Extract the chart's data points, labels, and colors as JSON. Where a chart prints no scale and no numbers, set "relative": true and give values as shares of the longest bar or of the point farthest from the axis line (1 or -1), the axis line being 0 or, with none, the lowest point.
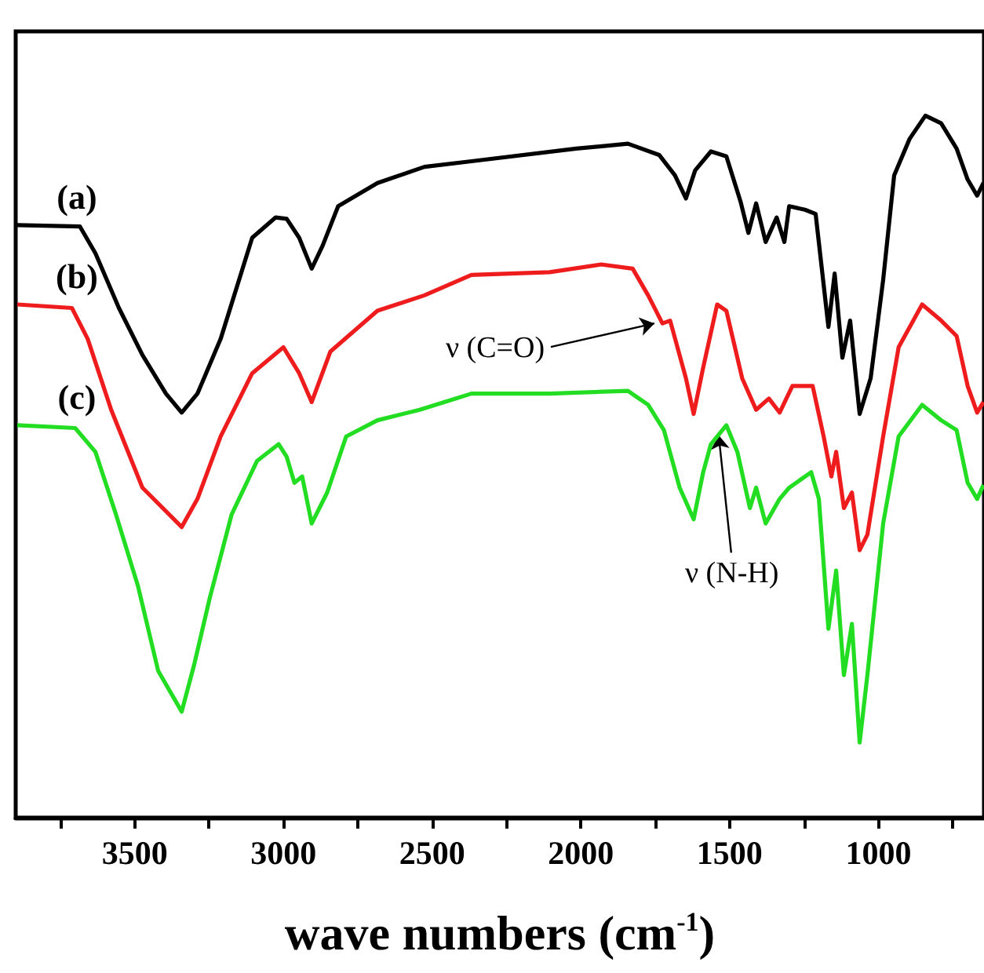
{
  "chart_data": {
    "type": "line",
    "relative": true,
    "xlabel": "wave numbers (cm$^{-1}$)",
    "xlim": [
      3900,
      645
    ],
    "xticks": [
      {
        "value": 3750,
        "label": null
      },
      3500,
      {
        "value": 3250,
        "label": null
      },
      3000,
      {
        "value": 2750,
        "label": null
      },
      2500,
      {
        "value": 2250,
        "label": null
      },
      2000,
      {
        "value": 1750,
        "label": null
      },
      1500,
      {
        "value": 1250,
        "label": null
      },
      1000,
      {
        "value": 750,
        "label": null
      }
    ],
    "tick_labels": "x",
    "legend": false,
    "grid": false,
    "marker": "none",
    "annotations": [
      {
        "text": "ν (C=O)",
        "x": 1753,
        "y": 0.704
      },
      {
        "text": "ν (N-H)",
        "x": 1537,
        "y": 0.545
      }
    ],
    "series": [
      {
        "name": "(a)",
        "color": "#000000",
        "x": [
          3895,
          3684,
          3632,
          3553,
          3474,
          3395,
          3342,
          3289,
          3211,
          3105,
          3026,
          2989,
          2947,
          2905,
          2868,
          2816,
          2684,
          2526,
          2368,
          2016,
          1842,
          1737,
          1684,
          1647,
          1616,
          1563,
          1511,
          1463,
          1437,
          1411,
          1379,
          1342,
          1316,
          1300,
          1247,
          1211,
          1168,
          1147,
          1121,
          1095,
          1063,
          1026,
          984,
          947,
          895,
          842,
          789,
          737,
          700,
          668,
          647
        ],
        "values": [
          0.844,
          0.842,
          0.804,
          0.726,
          0.659,
          0.604,
          0.577,
          0.604,
          0.682,
          0.826,
          0.855,
          0.853,
          0.826,
          0.782,
          0.815,
          0.871,
          0.904,
          0.927,
          0.935,
          0.953,
          0.96,
          0.944,
          0.915,
          0.882,
          0.922,
          0.949,
          0.942,
          0.877,
          0.833,
          0.875,
          0.82,
          0.855,
          0.82,
          0.871,
          0.866,
          0.86,
          0.699,
          0.775,
          0.655,
          0.708,
          0.575,
          0.626,
          0.766,
          0.915,
          0.967,
          1.0,
          0.989,
          0.953,
          0.909,
          0.886,
          0.904
        ]
      },
      {
        "name": "(b)",
        "color": "#ee1c1c",
        "x": [
          3895,
          3711,
          3658,
          3579,
          3474,
          3342,
          3289,
          3211,
          3105,
          3000,
          2947,
          2905,
          2842,
          2684,
          2526,
          2368,
          2105,
          1932,
          1826,
          1774,
          1726,
          1700,
          1647,
          1621,
          1589,
          1542,
          1511,
          1458,
          1411,
          1368,
          1332,
          1289,
          1221,
          1184,
          1158,
          1142,
          1116,
          1089,
          1063,
          1037,
          984,
          932,
          853,
          789,
          737,
          700,
          668,
          647
        ],
        "values": [
          0.731,
          0.726,
          0.682,
          0.581,
          0.47,
          0.414,
          0.454,
          0.543,
          0.633,
          0.67,
          0.633,
          0.592,
          0.664,
          0.722,
          0.744,
          0.773,
          0.777,
          0.788,
          0.782,
          0.744,
          0.704,
          0.708,
          0.626,
          0.575,
          0.641,
          0.731,
          0.722,
          0.626,
          0.581,
          0.597,
          0.577,
          0.615,
          0.615,
          0.543,
          0.486,
          0.521,
          0.441,
          0.463,
          0.381,
          0.403,
          0.543,
          0.67,
          0.731,
          0.708,
          0.686,
          0.615,
          0.577,
          0.592
        ]
      },
      {
        "name": "(c)",
        "color": "#22dd22",
        "x": [
          3895,
          3700,
          3632,
          3563,
          3489,
          3421,
          3342,
          3300,
          3247,
          3174,
          3089,
          3016,
          2989,
          2963,
          2937,
          2905,
          2853,
          2789,
          2684,
          2542,
          2368,
          2105,
          1842,
          1774,
          1721,
          1668,
          1621,
          1589,
          1563,
          1511,
          1474,
          1432,
          1411,
          1379,
          1332,
          1300,
          1226,
          1200,
          1168,
          1142,
          1116,
          1089,
          1063,
          1037,
          984,
          932,
          853,
          789,
          737,
          700,
          668,
          647
        ],
        "values": [
          0.559,
          0.555,
          0.521,
          0.432,
          0.33,
          0.209,
          0.151,
          0.218,
          0.314,
          0.432,
          0.508,
          0.532,
          0.514,
          0.477,
          0.486,
          0.419,
          0.463,
          0.543,
          0.566,
          0.581,
          0.604,
          0.604,
          0.608,
          0.588,
          0.552,
          0.47,
          0.425,
          0.492,
          0.532,
          0.559,
          0.521,
          0.441,
          0.47,
          0.419,
          0.454,
          0.47,
          0.492,
          0.454,
          0.269,
          0.352,
          0.203,
          0.276,
          0.107,
          0.203,
          0.419,
          0.543,
          0.588,
          0.566,
          0.552,
          0.477,
          0.454,
          0.474
        ]
      }
    ]
  }
}
